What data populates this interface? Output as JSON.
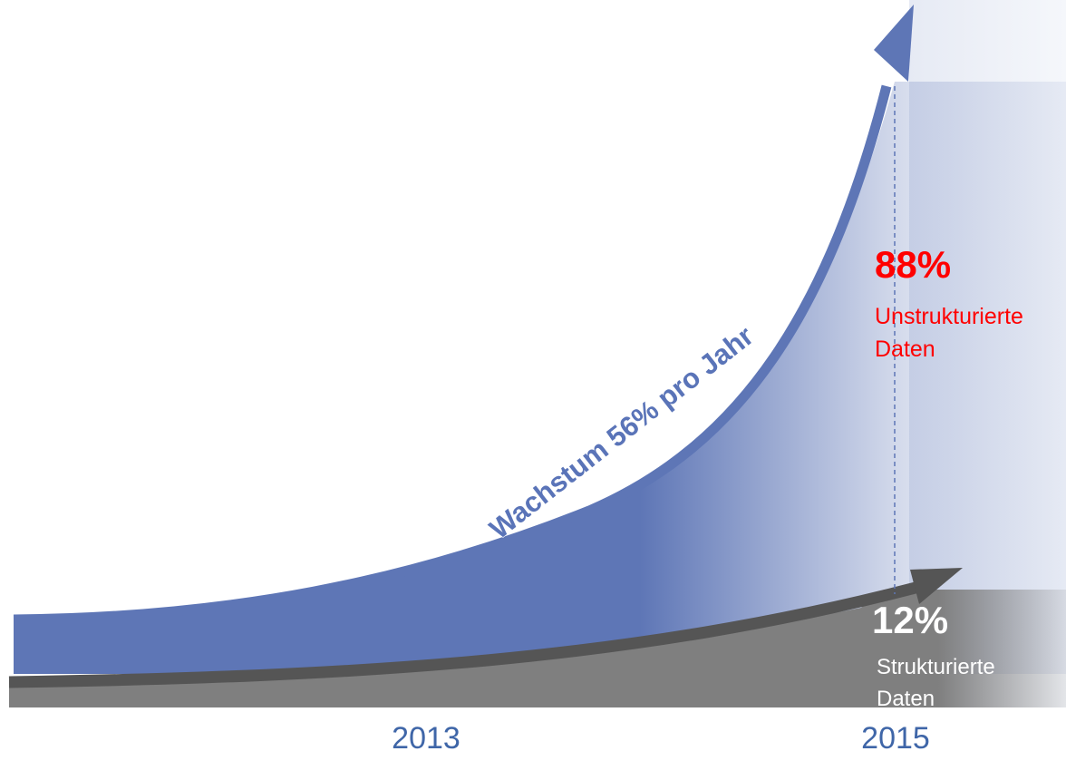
{
  "chart_data": {
    "type": "area",
    "x": [
      "2013",
      "2015"
    ],
    "growth_annotation": "Wachstum 56% pro Jahr",
    "series": [
      {
        "name": "Unstrukturierte Daten",
        "share_label": "88%",
        "label_line1": "Unstrukturierte",
        "label_line2": "Daten",
        "color": "#5e76b6"
      },
      {
        "name": "Strukturierte Daten",
        "share_label": "12%",
        "label_line1": "Strukturierte",
        "label_line2": "Daten",
        "color": "#7f7f7f"
      }
    ],
    "colors": {
      "unstructured": "#5e76b6",
      "structured": "#7f7f7f",
      "structured_arrow": "#555555",
      "highlight": "#ff0000",
      "axis_text": "#3f66a8"
    }
  }
}
